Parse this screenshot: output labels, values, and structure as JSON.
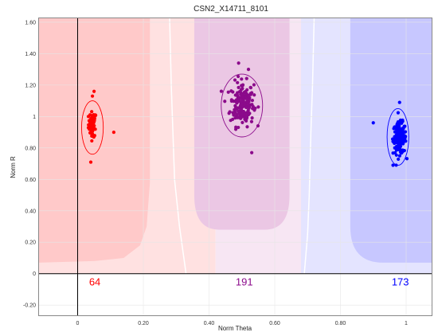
{
  "chart_data": {
    "type": "scatter",
    "title": "CSN2_X14711_8101",
    "xlabel": "Norm Theta",
    "ylabel": "Norm R",
    "xlim": [
      -0.12,
      1.08
    ],
    "ylim": [
      -0.27,
      1.63
    ],
    "x_ticks": [
      0,
      0.2,
      0.4,
      0.6,
      0.8,
      1
    ],
    "x_tick_labels": [
      "0",
      "0.20",
      "0.40",
      "0.60",
      "0.80",
      "1"
    ],
    "y_ticks": [
      -0.2,
      0,
      0.2,
      0.4,
      0.6,
      0.8,
      1,
      1.2,
      1.4,
      1.6
    ],
    "y_tick_labels": [
      "-0.20",
      "0",
      "0.20",
      "0.40",
      "0.60",
      "0.80",
      "1",
      "1.20",
      "1.40",
      "1.60"
    ],
    "grid": true,
    "clusters": [
      {
        "count_label": "64",
        "count": 64,
        "color": "#ff0000",
        "region_color": "#ffc9c9",
        "light_color": "#ffe1e1",
        "center": [
          0.045,
          0.95
        ],
        "spread": [
          0.006,
          0.04
        ],
        "ellipse_center": [
          0.045,
          0.93
        ],
        "ellipse_radius": [
          0.033,
          0.17
        ],
        "outliers": [
          [
            0.11,
            0.9
          ],
          [
            0.04,
            0.71
          ],
          [
            0.05,
            1.16
          ],
          [
            0.045,
            1.13
          ]
        ]
      },
      {
        "count_label": "191",
        "count": 191,
        "color": "#8b0a8b",
        "region_color": "#ebc7e4",
        "light_color": "#f7e6f3",
        "center": [
          0.5,
          1.08
        ],
        "spread": [
          0.018,
          0.07
        ],
        "ellipse_center": [
          0.5,
          1.07
        ],
        "ellipse_radius": [
          0.063,
          0.2
        ],
        "outliers": [
          [
            0.53,
            0.77
          ],
          [
            0.49,
            1.34
          ],
          [
            0.52,
            1.3
          ]
        ]
      },
      {
        "count_label": "173",
        "count": 173,
        "color": "#0000ff",
        "region_color": "#c7c7ff",
        "light_color": "#e4e4ff",
        "center": [
          0.98,
          0.86
        ],
        "spread": [
          0.01,
          0.05
        ],
        "ellipse_center": [
          0.975,
          0.87
        ],
        "ellipse_radius": [
          0.033,
          0.18
        ],
        "outliers": [
          [
            0.9,
            0.96
          ],
          [
            0.98,
            1.09
          ],
          [
            0.96,
            0.69
          ]
        ]
      }
    ]
  }
}
